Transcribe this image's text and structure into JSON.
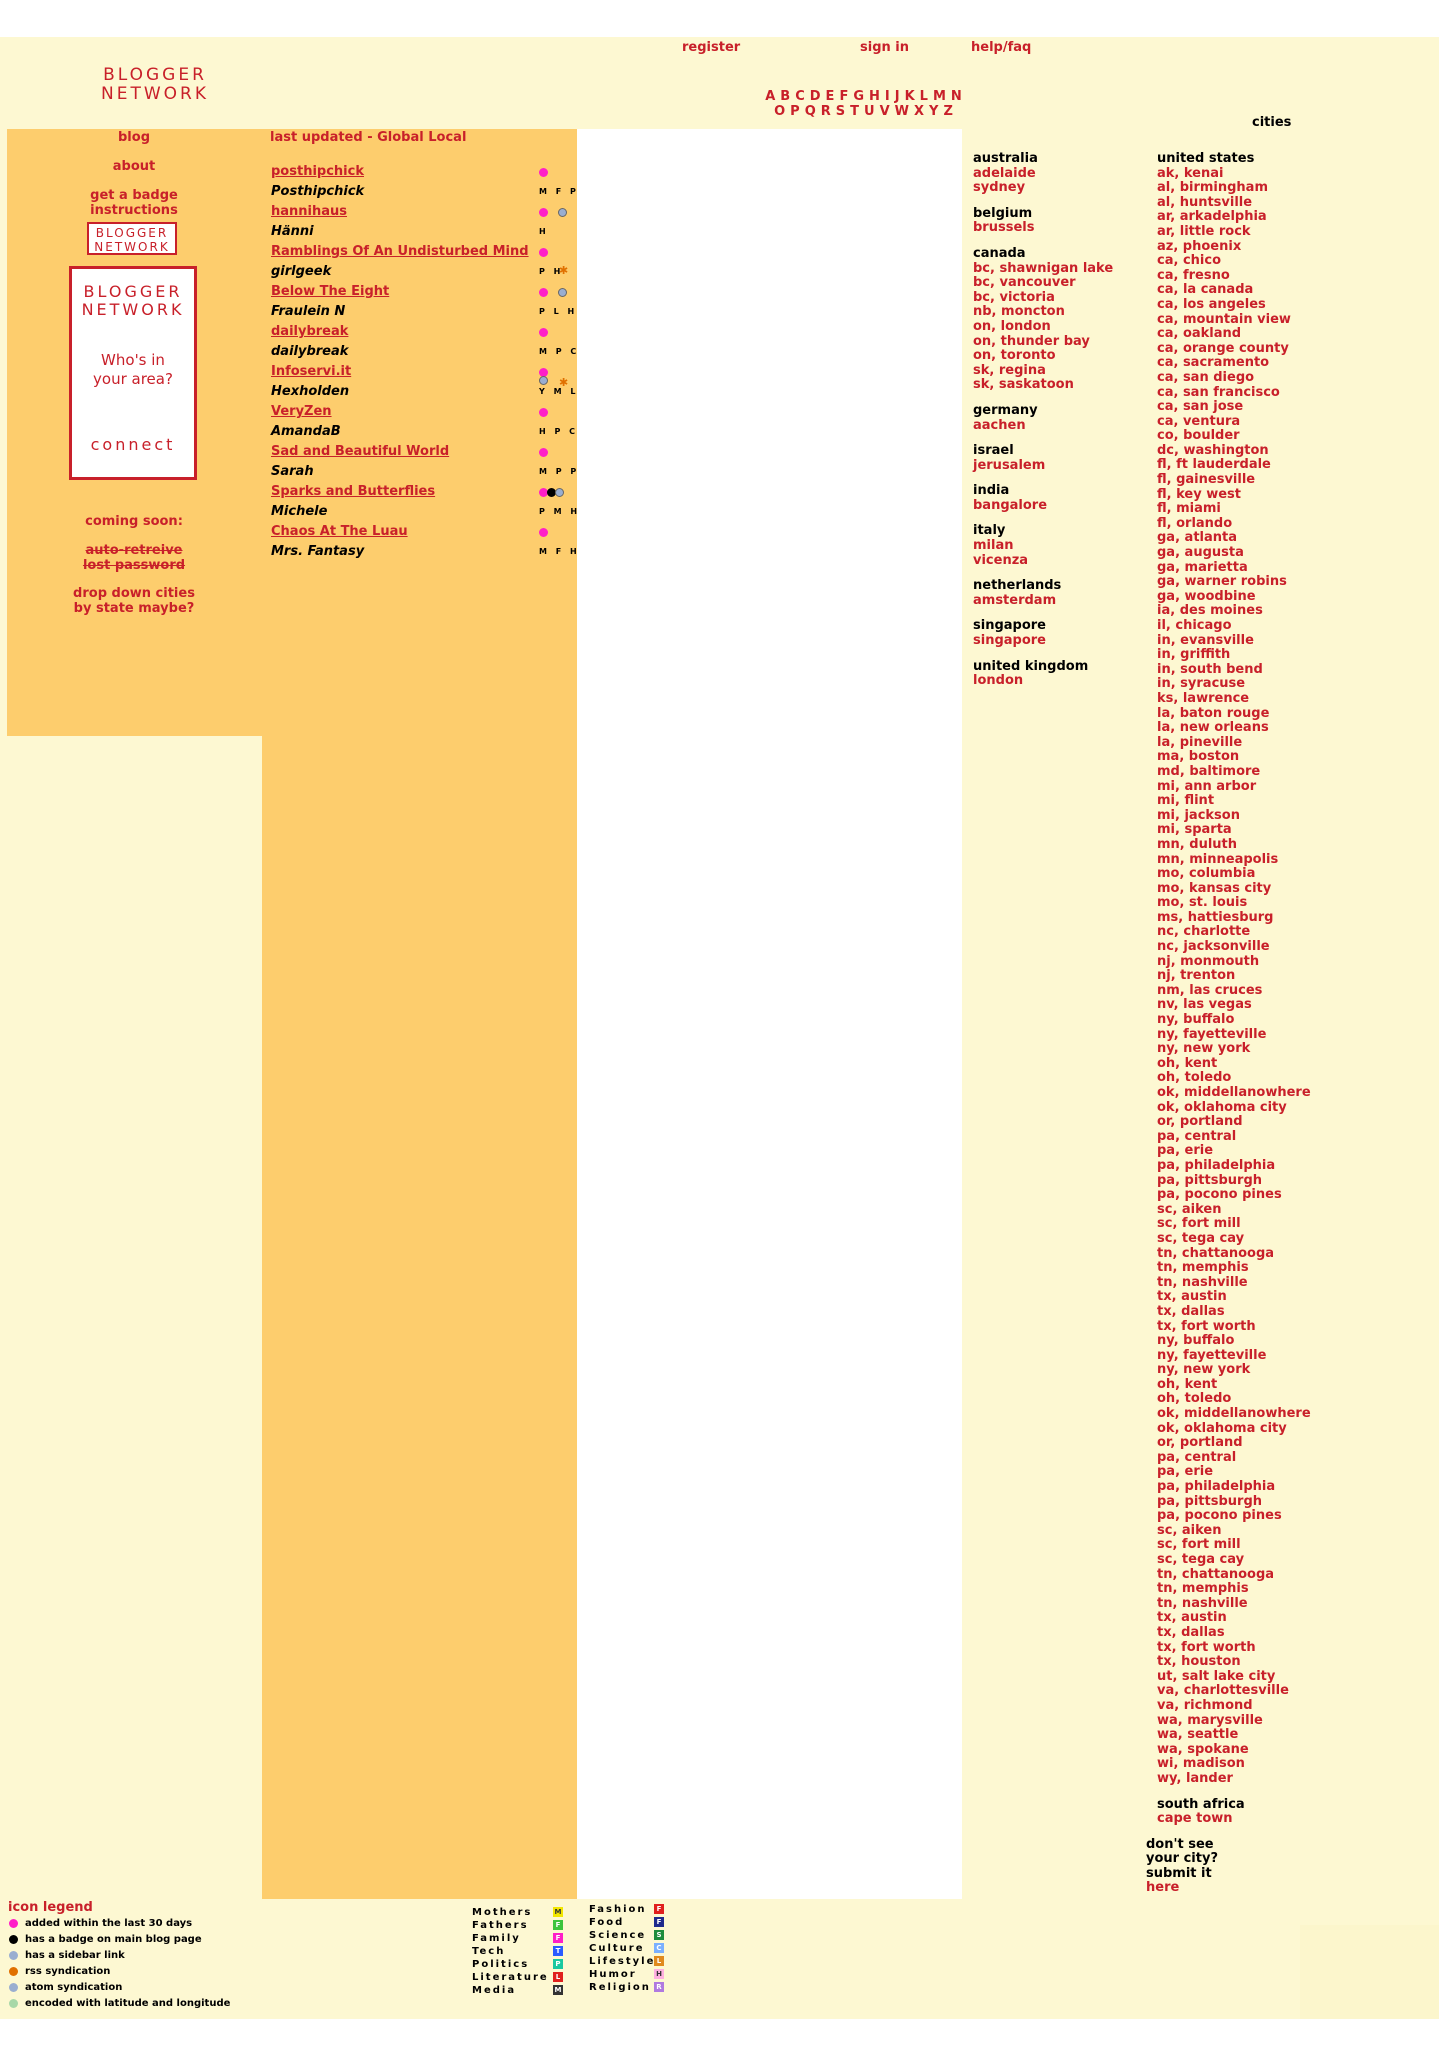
{
  "header": {
    "logo_line1": "BLOGGER",
    "logo_line2": "NETWORK",
    "register": "register",
    "sign_in": "sign in",
    "help": "help/faq",
    "alphabet_row1": [
      "A",
      "B",
      "C",
      "D",
      "E",
      "F",
      "G",
      "H",
      "I",
      "J",
      "K",
      "L",
      "M",
      "N"
    ],
    "alphabet_row2": [
      "O",
      "P",
      "Q",
      "R",
      "S",
      "T",
      "U",
      "V",
      "W",
      "X",
      "Y",
      "Z"
    ],
    "cities_label": "cities"
  },
  "sidebar": {
    "blog": "blog",
    "about": "about",
    "get_badge_1": "get a badge",
    "get_badge_2": "instructions",
    "badge_small_1": "BLOGGER",
    "badge_small_2": "NETWORK",
    "badge_big_1": "BLOGGER",
    "badge_big_2": "NETWORK",
    "badge_big_q1": "Who's in",
    "badge_big_q2": "your area?",
    "badge_big_connect": "connect",
    "coming_soon": "coming soon:",
    "auto_retreive": "auto-retreive",
    "lost_password": "lost password",
    "drop_down_1": "drop down cities",
    "drop_down_2": "by state maybe?"
  },
  "main": {
    "heading": "last updated - Global Local",
    "blogs": [
      {
        "name": "posthipchick",
        "style": "link",
        "icons": ""
      },
      {
        "name": "Posthipchick",
        "style": "plain",
        "icons": "M F P"
      },
      {
        "name": "hannihaus",
        "style": "link",
        "icons": ""
      },
      {
        "name": "Hänni",
        "style": "plain",
        "icons": "H"
      },
      {
        "name": "Ramblings Of An Undisturbed Mind",
        "style": "link",
        "icons": ""
      },
      {
        "name": "girlgeek",
        "style": "plain",
        "icons": "P H"
      },
      {
        "name": "Below The Eight",
        "style": "link",
        "icons": ""
      },
      {
        "name": "Fraulein N",
        "style": "plain",
        "icons": "P L H"
      },
      {
        "name": "dailybreak",
        "style": "link",
        "icons": ""
      },
      {
        "name": "dailybreak",
        "style": "plain",
        "icons": "M P C"
      },
      {
        "name": "Infoservi.it",
        "style": "link",
        "icons": ""
      },
      {
        "name": "Hexholden",
        "style": "plain",
        "icons": "Y M L"
      },
      {
        "name": "VeryZen",
        "style": "link",
        "icons": ""
      },
      {
        "name": "AmandaB",
        "style": "plain",
        "icons": "H P C"
      },
      {
        "name": "Sad and Beautiful World",
        "style": "link",
        "icons": ""
      },
      {
        "name": "Sarah",
        "style": "plain",
        "icons": "M P P"
      },
      {
        "name": "Sparks and Butterflies",
        "style": "link",
        "icons": ""
      },
      {
        "name": "Michele",
        "style": "plain",
        "icons": "P M H"
      },
      {
        "name": "Chaos At The Luau",
        "style": "link",
        "icons": ""
      },
      {
        "name": "Mrs. Fantasy",
        "style": "plain",
        "icons": "M F H"
      }
    ]
  },
  "cities_col1": [
    {
      "country": "australia",
      "cities": [
        "adelaide",
        "sydney"
      ]
    },
    {
      "country": "belgium",
      "cities": [
        "brussels"
      ]
    },
    {
      "country": "canada",
      "cities": [
        "bc, shawnigan lake",
        "bc, vancouver",
        "bc, victoria",
        "nb, moncton",
        "on, london",
        "on, thunder bay",
        "on, toronto",
        "sk, regina",
        "sk, saskatoon"
      ]
    },
    {
      "country": "germany",
      "cities": [
        "aachen"
      ]
    },
    {
      "country": "israel",
      "cities": [
        "jerusalem"
      ]
    },
    {
      "country": "india",
      "cities": [
        "bangalore"
      ]
    },
    {
      "country": "italy",
      "cities": [
        "milan",
        "vicenza"
      ]
    },
    {
      "country": "netherlands",
      "cities": [
        "amsterdam"
      ]
    },
    {
      "country": "singapore",
      "cities": [
        "singapore"
      ]
    },
    {
      "country": "united kingdom",
      "cities": [
        "london"
      ]
    }
  ],
  "cities_col2": {
    "country": "united states",
    "cities": [
      "ak, kenai",
      "al, birmingham",
      "al, huntsville",
      "ar, arkadelphia",
      "ar, little rock",
      "az, phoenix",
      "ca, chico",
      "ca, fresno",
      "ca, la canada",
      "ca, los angeles",
      "ca, mountain view",
      "ca, oakland",
      "ca, orange county",
      "ca, sacramento",
      "ca, san diego",
      "ca, san francisco",
      "ca, san jose",
      "ca, ventura",
      "co, boulder",
      "dc, washington",
      "fl, ft lauderdale",
      "fl, gainesville",
      "fl, key west",
      "fl, miami",
      "fl, orlando",
      "ga, atlanta",
      "ga, augusta",
      "ga, marietta",
      "ga, warner robins",
      "ga, woodbine",
      "ia, des moines",
      "il, chicago",
      "in, evansville",
      "in, griffith",
      "in, south bend",
      "in, syracuse",
      "ks, lawrence",
      "la, baton rouge",
      "la, new orleans",
      "la, pineville",
      "ma, boston",
      "md, baltimore",
      "mi, ann arbor",
      "mi, flint",
      "mi, jackson",
      "mi, sparta",
      "mn, duluth",
      "mn, minneapolis",
      "mo, columbia",
      "mo, kansas city",
      "mo, st. louis",
      "ms, hattiesburg",
      "nc, charlotte",
      "nc, jacksonville",
      "nj, monmouth",
      "nj, trenton",
      "nm, las cruces",
      "nv, las vegas",
      "ny, buffalo",
      "ny, fayetteville",
      "ny, new york",
      "oh, kent",
      "oh, toledo",
      "ok, middellanowhere",
      "ok, oklahoma city",
      "or, portland",
      "pa, central",
      "pa, erie",
      "pa, philadelphia",
      "pa, pittsburgh",
      "pa, pocono pines",
      "sc, aiken",
      "sc, fort mill",
      "sc, tega cay",
      "tn, chattanooga",
      "tn, memphis",
      "tn, nashville",
      "tx, austin",
      "tx, dallas",
      "tx, fort worth",
      "ny, buffalo",
      "ny, fayetteville",
      "ny, new york",
      "oh, kent",
      "oh, toledo",
      "ok, middellanowhere",
      "ok, oklahoma city",
      "or, portland",
      "pa, central",
      "pa, erie",
      "pa, philadelphia",
      "pa, pittsburgh",
      "pa, pocono pines",
      "sc, aiken",
      "sc, fort mill",
      "sc, tega cay",
      "tn, chattanooga",
      "tn, memphis",
      "tn, nashville",
      "tx, austin",
      "tx, dallas",
      "tx, fort worth",
      "tx, houston",
      "ut, salt lake city",
      "va, charlottesville",
      "va, richmond",
      "wa, marysville",
      "wa, seattle",
      "wa, spokane",
      "wi, madison",
      "wy, lander"
    ],
    "extra_country": "south africa",
    "extra_city": "cape town",
    "dont_see_1": "don't see",
    "dont_see_2": "your city?",
    "dont_see_3": "submit it",
    "dont_see_link": "here"
  },
  "legend": {
    "title": "icon legend",
    "items": [
      {
        "label": "added within the last 30 days",
        "color": "#ff1ec8"
      },
      {
        "label": "has a badge on main blog page",
        "color": "#000000"
      },
      {
        "label": "has a sidebar link",
        "color": "#9aaed0"
      },
      {
        "label": "rss syndication",
        "color": "#e07000"
      },
      {
        "label": "atom syndication",
        "color": "#9aaed0"
      },
      {
        "label": "encoded with latitude and longitude",
        "color": "#a8d8a8"
      }
    ]
  },
  "categories_left": [
    {
      "label": "Mothers",
      "letter": "M",
      "color": "#f2e600"
    },
    {
      "label": "Fathers",
      "letter": "F",
      "color": "#3cc43c"
    },
    {
      "label": "Family",
      "letter": "F",
      "color": "#ff1ec8"
    },
    {
      "label": "Tech",
      "letter": "T",
      "color": "#2a5cff"
    },
    {
      "label": "Politics",
      "letter": "P",
      "color": "#19c8a0"
    },
    {
      "label": "Literature",
      "letter": "L",
      "color": "#e0201e"
    },
    {
      "label": "Media",
      "letter": "M",
      "color": "#333333"
    }
  ],
  "categories_right": [
    {
      "label": "Fashion",
      "letter": "F",
      "color": "#e0201e"
    },
    {
      "label": "Food",
      "letter": "F",
      "color": "#1e2a8c"
    },
    {
      "label": "Science",
      "letter": "S",
      "color": "#1e8c3c"
    },
    {
      "label": "Culture",
      "letter": "C",
      "color": "#7ab0ff"
    },
    {
      "label": "Lifestyle",
      "letter": "L",
      "color": "#e08a1e"
    },
    {
      "label": "Humor",
      "letter": "H",
      "color": "#ffb0e0"
    },
    {
      "label": "Religion",
      "letter": "R",
      "color": "#b07ae0"
    }
  ]
}
